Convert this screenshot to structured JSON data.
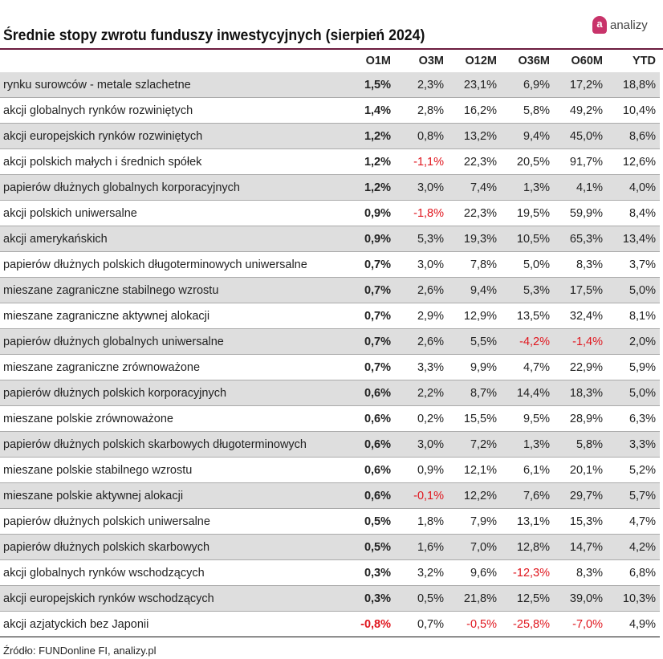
{
  "title": "Średnie stopy zwrotu funduszy inwestycyjnych (sierpień 2024)",
  "logo": {
    "letter": "a",
    "text": "analizy"
  },
  "colors": {
    "rule": "#6b1b3e",
    "negative": "#e0161e",
    "stripe": "#dedede"
  },
  "columns": [
    "",
    "O1M",
    "O3M",
    "O12M",
    "O36M",
    "O60M",
    "YTD"
  ],
  "rows": [
    [
      "rynku surowców - metale szlachetne",
      "1,5%",
      "2,3%",
      "23,1%",
      "6,9%",
      "17,2%",
      "18,8%"
    ],
    [
      "akcji globalnych rynków rozwiniętych",
      "1,4%",
      "2,8%",
      "16,2%",
      "5,8%",
      "49,2%",
      "10,4%"
    ],
    [
      "akcji europejskich rynków rozwiniętych",
      "1,2%",
      "0,8%",
      "13,2%",
      "9,4%",
      "45,0%",
      "8,6%"
    ],
    [
      "akcji polskich małych i średnich spółek",
      "1,2%",
      "-1,1%",
      "22,3%",
      "20,5%",
      "91,7%",
      "12,6%"
    ],
    [
      "papierów dłużnych globalnych korporacyjnych",
      "1,2%",
      "3,0%",
      "7,4%",
      "1,3%",
      "4,1%",
      "4,0%"
    ],
    [
      "akcji polskich uniwersalne",
      "0,9%",
      "-1,8%",
      "22,3%",
      "19,5%",
      "59,9%",
      "8,4%"
    ],
    [
      "akcji amerykańskich",
      "0,9%",
      "5,3%",
      "19,3%",
      "10,5%",
      "65,3%",
      "13,4%"
    ],
    [
      "papierów dłużnych polskich długoterminowych uniwersalne",
      "0,7%",
      "3,0%",
      "7,8%",
      "5,0%",
      "8,3%",
      "3,7%"
    ],
    [
      "mieszane zagraniczne stabilnego wzrostu",
      "0,7%",
      "2,6%",
      "9,4%",
      "5,3%",
      "17,5%",
      "5,0%"
    ],
    [
      "mieszane zagraniczne aktywnej alokacji",
      "0,7%",
      "2,9%",
      "12,9%",
      "13,5%",
      "32,4%",
      "8,1%"
    ],
    [
      "papierów dłużnych globalnych uniwersalne",
      "0,7%",
      "2,6%",
      "5,5%",
      "-4,2%",
      "-1,4%",
      "2,0%"
    ],
    [
      "mieszane zagraniczne zrównoważone",
      "0,7%",
      "3,3%",
      "9,9%",
      "4,7%",
      "22,9%",
      "5,9%"
    ],
    [
      "papierów dłużnych polskich korporacyjnych",
      "0,6%",
      "2,2%",
      "8,7%",
      "14,4%",
      "18,3%",
      "5,0%"
    ],
    [
      "mieszane polskie zrównoważone",
      "0,6%",
      "0,2%",
      "15,5%",
      "9,5%",
      "28,9%",
      "6,3%"
    ],
    [
      "papierów dłużnych polskich skarbowych długoterminowych",
      "0,6%",
      "3,0%",
      "7,2%",
      "1,3%",
      "5,8%",
      "3,3%"
    ],
    [
      "mieszane polskie stabilnego wzrostu",
      "0,6%",
      "0,9%",
      "12,1%",
      "6,1%",
      "20,1%",
      "5,2%"
    ],
    [
      "mieszane polskie aktywnej alokacji",
      "0,6%",
      "-0,1%",
      "12,2%",
      "7,6%",
      "29,7%",
      "5,7%"
    ],
    [
      "papierów dłużnych polskich uniwersalne",
      "0,5%",
      "1,8%",
      "7,9%",
      "13,1%",
      "15,3%",
      "4,7%"
    ],
    [
      "papierów dłużnych polskich skarbowych",
      "0,5%",
      "1,6%",
      "7,0%",
      "12,8%",
      "14,7%",
      "4,2%"
    ],
    [
      "akcji globalnych rynków wschodzących",
      "0,3%",
      "3,2%",
      "9,6%",
      "-12,3%",
      "8,3%",
      "6,8%"
    ],
    [
      "akcji europejskich rynków wschodzących",
      "0,3%",
      "0,5%",
      "21,8%",
      "12,5%",
      "39,0%",
      "10,3%"
    ],
    [
      "akcji azjatyckich bez Japonii",
      "-0,8%",
      "0,7%",
      "-0,5%",
      "-25,8%",
      "-7,0%",
      "4,9%"
    ]
  ],
  "source": "Źródło: FUNDonline FI, analizy.pl"
}
